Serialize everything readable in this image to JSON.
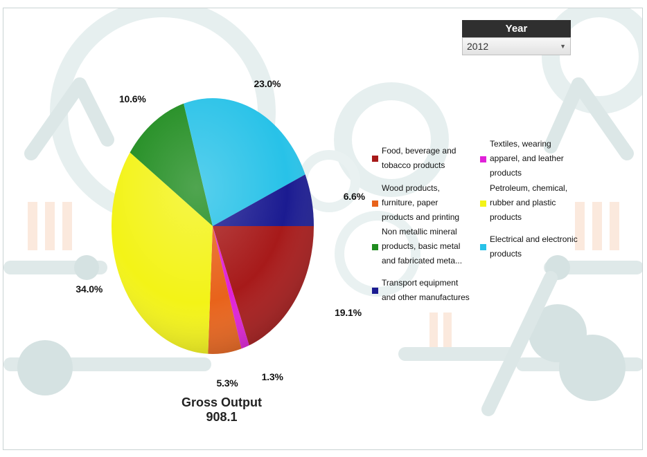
{
  "year_filter": {
    "title": "Year",
    "selected": "2012"
  },
  "summary": {
    "label": "Gross Output",
    "value": "908.1"
  },
  "colors": {
    "food": "#a71a1a",
    "textiles": "#e021d8",
    "wood": "#e8631b",
    "petroleum": "#f3f317",
    "nonmetal": "#1f8c1f",
    "electrical": "#28c2e8",
    "transport": "#1b1b91"
  },
  "legend": [
    {
      "key": "food",
      "label_lines": [
        "Food, beverage and",
        "tobacco products"
      ]
    },
    {
      "key": "textiles",
      "label_lines": [
        "Textiles, wearing",
        "apparel, and leather",
        "products"
      ]
    },
    {
      "key": "wood",
      "label_lines": [
        "Wood products,",
        "furniture, paper",
        "products and printing"
      ]
    },
    {
      "key": "petroleum",
      "label_lines": [
        "Petroleum, chemical,",
        "rubber and plastic",
        "products"
      ]
    },
    {
      "key": "nonmetal",
      "label_lines": [
        "Non metallic mineral",
        "products, basic metal",
        "and fabricated meta..."
      ]
    },
    {
      "key": "electrical",
      "label_lines": [
        "Electrical and electronic",
        "products"
      ]
    },
    {
      "key": "transport",
      "label_lines": [
        "Transport equipment",
        "and other manufactures"
      ]
    }
  ],
  "chart_data": {
    "type": "pie",
    "title": "",
    "legend_position": "right",
    "slices": [
      {
        "name": "Food, beverage and tobacco products",
        "key": "food",
        "value": 19.1,
        "label": "19.1%"
      },
      {
        "name": "Textiles, wearing apparel, and leather products",
        "key": "textiles",
        "value": 1.3,
        "label": "1.3%"
      },
      {
        "name": "Wood products, furniture, paper products and printing",
        "key": "wood",
        "value": 5.3,
        "label": "5.3%"
      },
      {
        "name": "Petroleum, chemical, rubber and plastic products",
        "key": "petroleum",
        "value": 34.0,
        "label": "34.0%"
      },
      {
        "name": "Non metallic mineral products, basic metal and fabricated meta...",
        "key": "nonmetal",
        "value": 10.6,
        "label": "10.6%"
      },
      {
        "name": "Electrical and electronic products",
        "key": "electrical",
        "value": 23.0,
        "label": "23.0%"
      },
      {
        "name": "Transport equipment and other manufactures",
        "key": "transport",
        "value": 6.6,
        "label": "6.6%"
      }
    ]
  }
}
